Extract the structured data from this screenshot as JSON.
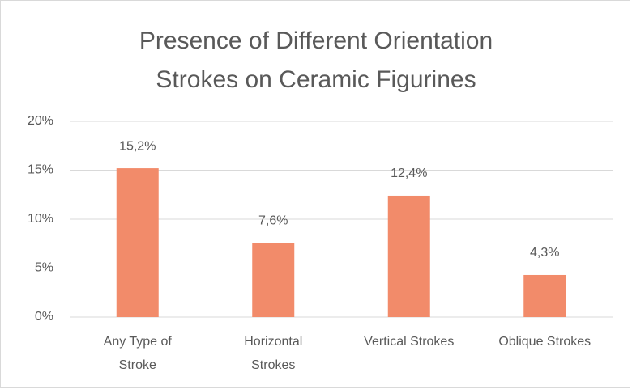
{
  "chart_data": {
    "type": "bar",
    "title": [
      "Presence of Different Orientation",
      "Strokes on Ceramic Figurines"
    ],
    "categories": [
      "Any Type of Stroke",
      "Horizontal Strokes",
      "Vertical Strokes",
      "Oblique Strokes"
    ],
    "values": [
      15.2,
      7.6,
      12.4,
      4.3
    ],
    "value_labels": [
      "15,2%",
      "7,6%",
      "12,4%",
      "4,3%"
    ],
    "color": "#f28b6a",
    "ylim": [
      0,
      20
    ],
    "yticks": [
      {
        "value": 0,
        "label": "0%"
      },
      {
        "value": 5,
        "label": "5%"
      },
      {
        "value": 10,
        "label": "10%"
      },
      {
        "value": 15,
        "label": "15%"
      },
      {
        "value": 20,
        "label": "20%"
      }
    ],
    "grid": true
  }
}
